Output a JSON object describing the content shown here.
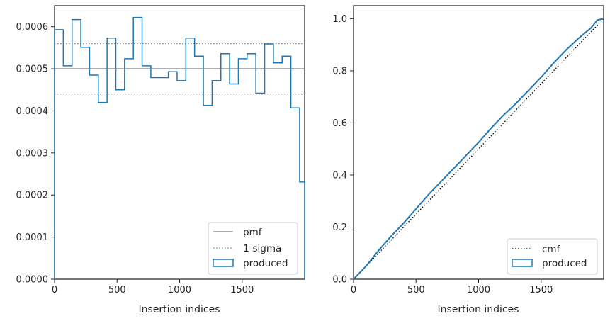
{
  "chart_data": [
    {
      "type": "histogram",
      "xlabel": "Insertion indices",
      "ylabel": "",
      "xlim": [
        0,
        2000
      ],
      "ylim": [
        0,
        0.00065
      ],
      "xticks": [
        0,
        500,
        1000,
        1500
      ],
      "yticks": [
        0,
        0.0001,
        0.0002,
        0.0003,
        0.0004,
        0.0005,
        0.0006
      ],
      "ytick_labels": [
        "0.0000",
        "0.0001",
        "0.0002",
        "0.0003",
        "0.0004",
        "0.0005",
        "0.0006"
      ],
      "grid": false,
      "legend_position": "lower-right",
      "reference_lines": [
        {
          "name": "pmf",
          "y": 0.0005,
          "style": "solid",
          "color": "#808080"
        },
        {
          "name": "1-sigma",
          "y": [
            0.00044,
            0.00056
          ],
          "style": "dotted",
          "color": "#808080"
        }
      ],
      "series": [
        {
          "name": "produced",
          "color": "#1f77b4",
          "bin_width": 70,
          "values": [
            0.000593,
            0.000507,
            0.000617,
            0.000551,
            0.000485,
            0.00042,
            0.000573,
            0.00045,
            0.000524,
            0.000622,
            0.000507,
            0.000479,
            0.000479,
            0.000493,
            0.000472,
            0.000573,
            0.00053,
            0.000413,
            0.000472,
            0.000536,
            0.000464,
            0.000524,
            0.000536,
            0.000442,
            0.000559,
            0.000514,
            0.00053,
            0.000407,
            0.000231
          ]
        }
      ]
    },
    {
      "type": "line",
      "xlabel": "Insertion indices",
      "ylabel": "",
      "xlim": [
        0,
        2000
      ],
      "ylim": [
        0,
        1.05
      ],
      "xticks": [
        0,
        500,
        1000,
        1500
      ],
      "yticks": [
        0,
        0.2,
        0.4,
        0.6,
        0.8,
        1.0
      ],
      "ytick_labels": [
        "0.0",
        "0.2",
        "0.4",
        "0.6",
        "0.8",
        "1.0"
      ],
      "grid": false,
      "legend_position": "lower-right",
      "series": [
        {
          "name": "cmf",
          "style": "dotted",
          "color": "#000000",
          "x": [
            0,
            2000
          ],
          "y": [
            0,
            1.0
          ]
        },
        {
          "name": "produced",
          "style": "solid",
          "color": "#1f77b4",
          "x": [
            0,
            100,
            200,
            300,
            400,
            500,
            600,
            700,
            800,
            900,
            1000,
            1100,
            1200,
            1300,
            1400,
            1500,
            1600,
            1700,
            1800,
            1900,
            1950,
            2000
          ],
          "y": [
            0,
            0.05,
            0.11,
            0.165,
            0.215,
            0.27,
            0.325,
            0.375,
            0.425,
            0.475,
            0.525,
            0.58,
            0.63,
            0.675,
            0.725,
            0.775,
            0.83,
            0.88,
            0.925,
            0.965,
            0.995,
            1.0
          ]
        }
      ]
    }
  ]
}
